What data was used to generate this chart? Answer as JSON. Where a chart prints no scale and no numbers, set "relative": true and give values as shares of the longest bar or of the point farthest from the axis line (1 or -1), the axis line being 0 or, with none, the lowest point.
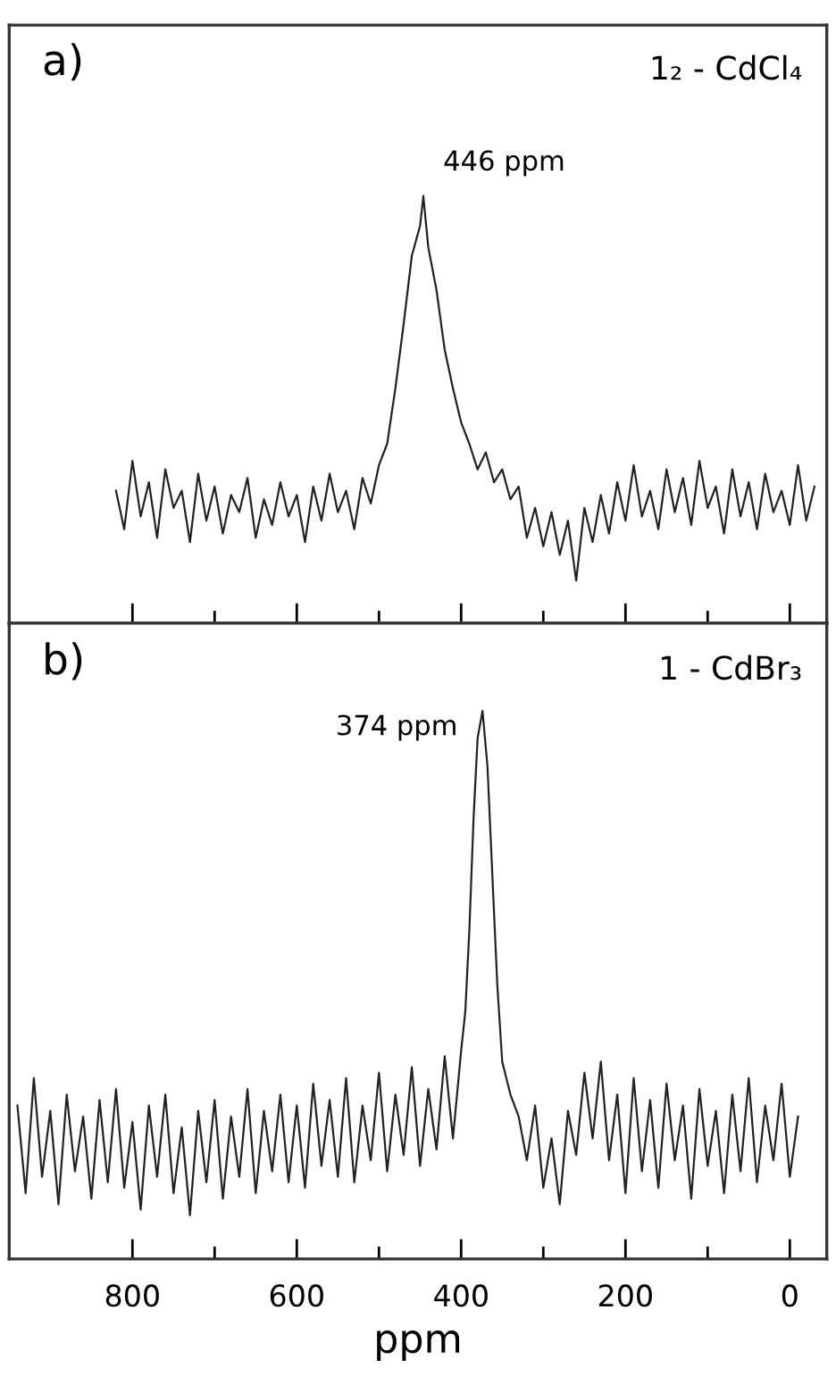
{
  "chart_data": [
    {
      "type": "line",
      "title": "a)",
      "subtitle": "1₂ - CdCl₄",
      "relative": true,
      "xlim": [
        950,
        -45
      ],
      "tick_labels": false,
      "grid": false,
      "legend": false,
      "xticks": [
        800,
        {
          "value": 700,
          "label": null
        },
        600,
        {
          "value": 500,
          "label": null
        },
        400,
        {
          "value": 300,
          "label": null
        },
        200,
        {
          "value": 100,
          "label": null
        },
        0
      ],
      "annotations": [
        {
          "text": "446 ppm",
          "x": 446,
          "y": 1
        }
      ],
      "series": [
        {
          "color": "#222222",
          "x": [
            820,
            810,
            800,
            790,
            780,
            770,
            760,
            750,
            740,
            730,
            720,
            710,
            700,
            690,
            680,
            670,
            660,
            650,
            640,
            630,
            620,
            610,
            600,
            590,
            580,
            570,
            560,
            550,
            540,
            530,
            520,
            510,
            500,
            490,
            480,
            470,
            460,
            450,
            446,
            440,
            430,
            420,
            410,
            400,
            390,
            380,
            370,
            360,
            350,
            340,
            330,
            320,
            310,
            300,
            290,
            280,
            270,
            260,
            250,
            240,
            230,
            220,
            210,
            200,
            190,
            180,
            170,
            160,
            150,
            140,
            130,
            120,
            110,
            100,
            90,
            80,
            70,
            60,
            50,
            40,
            30,
            20,
            10,
            0,
            -10,
            -20,
            -30
          ],
          "values": [
            0.31,
            0.22,
            0.38,
            0.25,
            0.33,
            0.2,
            0.36,
            0.27,
            0.31,
            0.19,
            0.35,
            0.24,
            0.32,
            0.21,
            0.3,
            0.26,
            0.34,
            0.2,
            0.29,
            0.23,
            0.33,
            0.25,
            0.3,
            0.19,
            0.32,
            0.24,
            0.35,
            0.26,
            0.31,
            0.22,
            0.34,
            0.28,
            0.37,
            0.42,
            0.55,
            0.7,
            0.86,
            0.93,
            1.0,
            0.88,
            0.78,
            0.64,
            0.55,
            0.47,
            0.42,
            0.36,
            0.4,
            0.33,
            0.36,
            0.29,
            0.32,
            0.2,
            0.27,
            0.18,
            0.26,
            0.16,
            0.24,
            0.1,
            0.27,
            0.19,
            0.3,
            0.21,
            0.33,
            0.24,
            0.37,
            0.25,
            0.31,
            0.22,
            0.36,
            0.26,
            0.34,
            0.23,
            0.38,
            0.27,
            0.32,
            0.21,
            0.36,
            0.25,
            0.33,
            0.22,
            0.35,
            0.26,
            0.31,
            0.23,
            0.37,
            0.24,
            0.32
          ]
        }
      ]
    },
    {
      "type": "line",
      "title": "b)",
      "subtitle": "1 - CdBr₃",
      "xlabel": "ppm",
      "relative": true,
      "xlim": [
        950,
        -45
      ],
      "tick_labels": "x",
      "grid": false,
      "legend": false,
      "xticks": [
        800,
        {
          "value": 700,
          "label": null
        },
        600,
        {
          "value": 500,
          "label": null
        },
        400,
        {
          "value": 300,
          "label": null
        },
        200,
        {
          "value": 100,
          "label": null
        },
        0
      ],
      "annotations": [
        {
          "text": "374 ppm",
          "x": 374,
          "y": 1
        }
      ],
      "series": [
        {
          "color": "#222222",
          "x": [
            940,
            930,
            920,
            910,
            900,
            890,
            880,
            870,
            860,
            850,
            840,
            830,
            820,
            810,
            800,
            790,
            780,
            770,
            760,
            750,
            740,
            730,
            720,
            710,
            700,
            690,
            680,
            670,
            660,
            650,
            640,
            630,
            620,
            610,
            600,
            590,
            580,
            570,
            560,
            550,
            540,
            530,
            520,
            510,
            500,
            490,
            480,
            470,
            460,
            450,
            440,
            430,
            420,
            410,
            400,
            395,
            390,
            385,
            380,
            374,
            368,
            362,
            356,
            350,
            340,
            330,
            320,
            310,
            300,
            290,
            280,
            270,
            260,
            250,
            240,
            230,
            220,
            210,
            200,
            190,
            180,
            170,
            160,
            150,
            140,
            130,
            120,
            110,
            100,
            90,
            80,
            70,
            60,
            50,
            40,
            30,
            20,
            10,
            0,
            -10
          ],
          "values": [
            0.28,
            0.12,
            0.33,
            0.15,
            0.27,
            0.1,
            0.3,
            0.16,
            0.26,
            0.11,
            0.29,
            0.14,
            0.31,
            0.13,
            0.25,
            0.09,
            0.28,
            0.15,
            0.3,
            0.12,
            0.24,
            0.08,
            0.27,
            0.14,
            0.29,
            0.11,
            0.26,
            0.15,
            0.31,
            0.12,
            0.27,
            0.16,
            0.3,
            0.14,
            0.28,
            0.13,
            0.32,
            0.17,
            0.29,
            0.15,
            0.33,
            0.14,
            0.28,
            0.18,
            0.34,
            0.16,
            0.3,
            0.19,
            0.35,
            0.17,
            0.31,
            0.2,
            0.37,
            0.22,
            0.38,
            0.45,
            0.6,
            0.8,
            0.95,
            1.0,
            0.9,
            0.7,
            0.5,
            0.36,
            0.3,
            0.26,
            0.18,
            0.28,
            0.13,
            0.22,
            0.1,
            0.27,
            0.19,
            0.34,
            0.22,
            0.36,
            0.18,
            0.3,
            0.12,
            0.33,
            0.16,
            0.29,
            0.13,
            0.32,
            0.18,
            0.28,
            0.11,
            0.31,
            0.17,
            0.27,
            0.12,
            0.3,
            0.16,
            0.33,
            0.14,
            0.28,
            0.18,
            0.32,
            0.15,
            0.26
          ]
        }
      ]
    }
  ]
}
